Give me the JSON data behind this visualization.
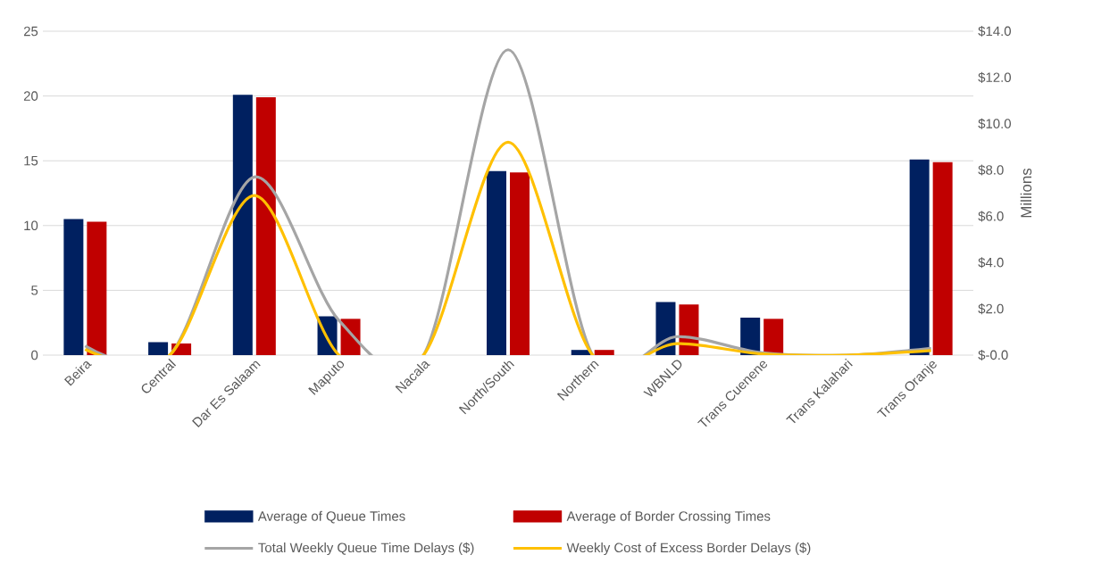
{
  "chart_data": {
    "type": "bar",
    "categories": [
      "Beira",
      "Central",
      "Dar Es Salaam",
      "Maputo",
      "Nacala",
      "North/South",
      "Northern",
      "WBNLD",
      "Trans Cuenene",
      "Trans Kalahari",
      "Trans Oranje"
    ],
    "series": [
      {
        "name": "Average of Queue Times",
        "color": "#002060",
        "values": [
          10.5,
          1.0,
          20.1,
          3.0,
          0,
          14.2,
          0.4,
          4.1,
          2.9,
          0,
          15.1
        ]
      },
      {
        "name": "Average of Border Crossing Times",
        "color": "#c00000",
        "values": [
          10.3,
          0.9,
          19.9,
          2.8,
          0,
          14.1,
          0.4,
          3.9,
          2.8,
          0,
          14.9
        ]
      },
      {
        "name": "Total Weekly Queue Time Delays ($)",
        "type": "line",
        "axis": "y2",
        "color": "#a5a5a5",
        "values": [
          0.4,
          0,
          7.7,
          1.5,
          0,
          13.2,
          0,
          0.8,
          0.1,
          0,
          0.3
        ]
      },
      {
        "name": "Weekly Cost of Excess Border Delays ($)",
        "type": "line",
        "axis": "y2",
        "color": "#ffc000",
        "values": [
          0.25,
          0,
          6.9,
          0,
          0,
          9.2,
          0,
          0.5,
          0.05,
          0,
          0.2
        ]
      }
    ],
    "ylim": [
      0,
      25
    ],
    "yticks": [
      0,
      5,
      10,
      15,
      20,
      25
    ],
    "y2lim": [
      0,
      14
    ],
    "y2ticks": [
      {
        "value": 0,
        "label": "$-0.0"
      },
      {
        "value": 2,
        "label": "$2.0"
      },
      {
        "value": 4,
        "label": "$4.0"
      },
      {
        "value": 6,
        "label": "$6.0"
      },
      {
        "value": 8,
        "label": "$8.0"
      },
      {
        "value": 10,
        "label": "$10.0"
      },
      {
        "value": 12,
        "label": "$12.0"
      },
      {
        "value": 14,
        "label": "$14.0"
      }
    ],
    "y2label": "Millions",
    "grid": "y",
    "legend": "bottom"
  }
}
